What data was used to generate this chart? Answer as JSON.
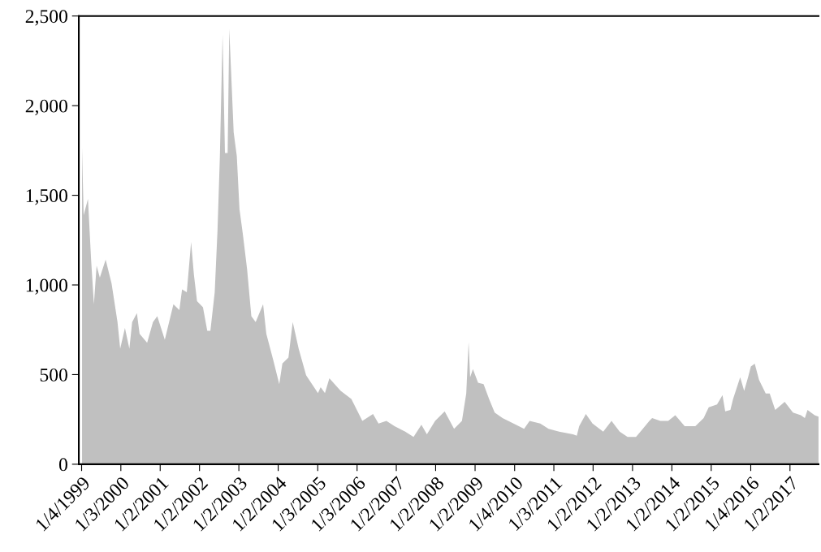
{
  "chart_data": {
    "type": "area",
    "color": "#c0c0c0",
    "grid": false,
    "legend": false,
    "x": [
      "1999-01-08",
      "1999-01-23",
      "1999-03-04",
      "1999-04-02",
      "1999-04-28",
      "1999-05-23",
      "1999-06-22",
      "1999-08-15",
      "1999-10-09",
      "1999-12-03",
      "1999-12-28",
      "2000-02-10",
      "2000-03-22",
      "2000-04-17",
      "2000-05-31",
      "2000-06-25",
      "2000-09-03",
      "2000-10-27",
      "2000-12-06",
      "2001-02-14",
      "2001-05-05",
      "2001-06-29",
      "2001-07-24",
      "2001-09-06",
      "2001-10-16",
      "2001-11-11",
      "2001-12-10",
      "2002-02-03",
      "2002-03-15",
      "2002-04-13",
      "2002-05-23",
      "2002-06-18",
      "2002-07-10",
      "2002-08-04",
      "2002-08-26",
      "2002-09-20",
      "2002-10-05",
      "2002-11-15",
      "2002-12-14",
      "2003-01-08",
      "2003-02-07",
      "2003-03-19",
      "2003-04-28",
      "2003-06-07",
      "2003-08-15",
      "2003-09-14",
      "2003-11-18",
      "2004-01-12",
      "2004-02-10",
      "2004-04-06",
      "2004-05-16",
      "2004-07-10",
      "2004-09-17",
      "2004-11-11",
      "2005-01-05",
      "2005-01-30",
      "2005-03-11",
      "2005-04-21",
      "2005-08-04",
      "2005-11-11",
      "2006-02-21",
      "2006-05-31",
      "2006-07-21",
      "2006-10-02",
      "2006-12-17",
      "2007-03-26",
      "2007-06-11",
      "2007-08-23",
      "2007-10-13",
      "2007-12-28",
      "2008-03-26",
      "2008-06-21",
      "2008-09-02",
      "2008-10-12",
      "2008-11-03",
      "2008-11-17",
      "2008-12-13",
      "2009-01-30",
      "2009-03-22",
      "2009-05-12",
      "2009-07-03",
      "2009-09-14",
      "2009-12-25",
      "2010-04-02",
      "2010-05-23",
      "2010-08-30",
      "2010-11-15",
      "2011-02-21",
      "2011-06-29",
      "2011-08-04",
      "2011-08-26",
      "2011-10-27",
      "2011-12-28",
      "2012-04-05",
      "2012-06-21",
      "2012-09-05",
      "2012-11-17",
      "2013-02-03",
      "2013-03-26",
      "2013-06-07",
      "2013-07-03",
      "2013-09-17",
      "2013-11-29",
      "2014-02-03",
      "2014-05-01",
      "2014-08-08",
      "2014-10-24",
      "2014-12-10",
      "2015-02-25",
      "2015-04-17",
      "2015-05-12",
      "2015-06-29",
      "2015-07-24",
      "2015-09-28",
      "2015-11-04",
      "2015-12-10",
      "2016-01-05",
      "2016-02-10",
      "2016-03-21",
      "2016-05-22",
      "2016-06-28",
      "2016-08-18",
      "2016-11-14",
      "2017-01-30",
      "2017-04-13",
      "2017-05-20",
      "2017-06-14",
      "2017-08-19",
      "2017-09-24"
    ],
    "values": [
      1769,
      1389,
      1480,
      1141,
      893,
      1108,
      1041,
      1141,
      1008,
      793,
      645,
      760,
      645,
      793,
      843,
      727,
      678,
      793,
      826,
      694,
      893,
      860,
      975,
      959,
      1240,
      1058,
      909,
      876,
      744,
      744,
      959,
      1306,
      1719,
      2397,
      1736,
      1736,
      2430,
      1851,
      1719,
      1422,
      1289,
      1091,
      826,
      793,
      893,
      727,
      579,
      446,
      562,
      595,
      793,
      645,
      496,
      446,
      397,
      430,
      397,
      479,
      409,
      364,
      242,
      280,
      227,
      242,
      212,
      182,
      152,
      220,
      167,
      242,
      295,
      197,
      242,
      394,
      682,
      485,
      530,
      455,
      447,
      364,
      288,
      258,
      227,
      197,
      242,
      227,
      197,
      182,
      167,
      159,
      212,
      280,
      227,
      182,
      242,
      182,
      152,
      152,
      189,
      242,
      258,
      242,
      242,
      273,
      212,
      212,
      258,
      318,
      333,
      386,
      295,
      303,
      364,
      485,
      409,
      485,
      545,
      561,
      470,
      394,
      394,
      303,
      348,
      288,
      273,
      258,
      303,
      273,
      265
    ],
    "xlim": [
      "1998-12-09",
      "2017-09-24"
    ],
    "xticks": [
      {
        "value": "1999-01-04",
        "label": "1/4/1999"
      },
      {
        "value": "2000-01-03",
        "label": "1/3/2000"
      },
      {
        "value": "2001-01-02",
        "label": "1/2/2001"
      },
      {
        "value": "2002-01-02",
        "label": "1/2/2002"
      },
      {
        "value": "2003-01-02",
        "label": "1/2/2003"
      },
      {
        "value": "2004-01-02",
        "label": "1/2/2004"
      },
      {
        "value": "2005-01-03",
        "label": "1/3/2005"
      },
      {
        "value": "2006-01-03",
        "label": "1/3/2006"
      },
      {
        "value": "2007-01-02",
        "label": "1/2/2007"
      },
      {
        "value": "2008-01-02",
        "label": "1/2/2008"
      },
      {
        "value": "2009-01-02",
        "label": "1/2/2009"
      },
      {
        "value": "2010-01-04",
        "label": "1/4/2010"
      },
      {
        "value": "2011-01-03",
        "label": "1/3/2011"
      },
      {
        "value": "2012-01-02",
        "label": "1/2/2012"
      },
      {
        "value": "2013-01-02",
        "label": "1/2/2013"
      },
      {
        "value": "2014-01-02",
        "label": "1/2/2014"
      },
      {
        "value": "2015-01-02",
        "label": "1/2/2015"
      },
      {
        "value": "2016-01-04",
        "label": "1/4/2016"
      },
      {
        "value": "2017-01-02",
        "label": "1/2/2017"
      }
    ],
    "ylim": [
      0,
      2500
    ],
    "yticks": [
      0,
      500,
      {
        "value": 1000,
        "label": "1,000"
      },
      {
        "value": 1500,
        "label": "1,500"
      },
      {
        "value": 2000,
        "label": "2,000"
      },
      {
        "value": 2500,
        "label": "2,500"
      }
    ]
  }
}
